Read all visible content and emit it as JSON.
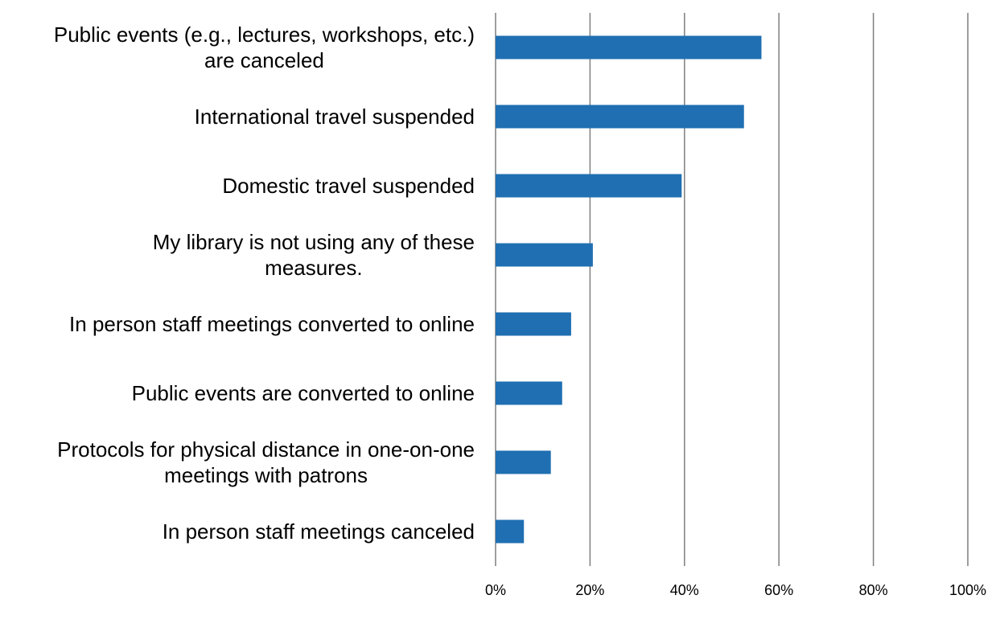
{
  "chart_data": {
    "type": "bar",
    "orientation": "horizontal",
    "title": "",
    "xlabel": "",
    "ylabel": "",
    "xlim": [
      0,
      100
    ],
    "tick_values": [
      0,
      20,
      40,
      60,
      80,
      100
    ],
    "tick_labels": [
      "0%",
      "20%",
      "40%",
      "60%",
      "80%",
      "100%"
    ],
    "grid": true,
    "legend": "none",
    "bar_color": "#1f6fb2",
    "categories": [
      {
        "lines": [
          "Public events (e.g., lectures, workshops, etc.)",
          "are canceled"
        ],
        "value": 56.3
      },
      {
        "lines": [
          "International travel suspended"
        ],
        "value": 52.6
      },
      {
        "lines": [
          "Domestic travel suspended"
        ],
        "value": 39.4
      },
      {
        "lines": [
          "My library is not using any of these",
          "measures."
        ],
        "value": 20.6
      },
      {
        "lines": [
          "In person staff meetings converted to online"
        ],
        "value": 16.0
      },
      {
        "lines": [
          "Public events are converted to online"
        ],
        "value": 14.1
      },
      {
        "lines": [
          "Protocols for physical distance in one-on-one",
          "meetings with patrons"
        ],
        "value": 11.7
      },
      {
        "lines": [
          "In person staff meetings canceled"
        ],
        "value": 6.0
      }
    ]
  }
}
